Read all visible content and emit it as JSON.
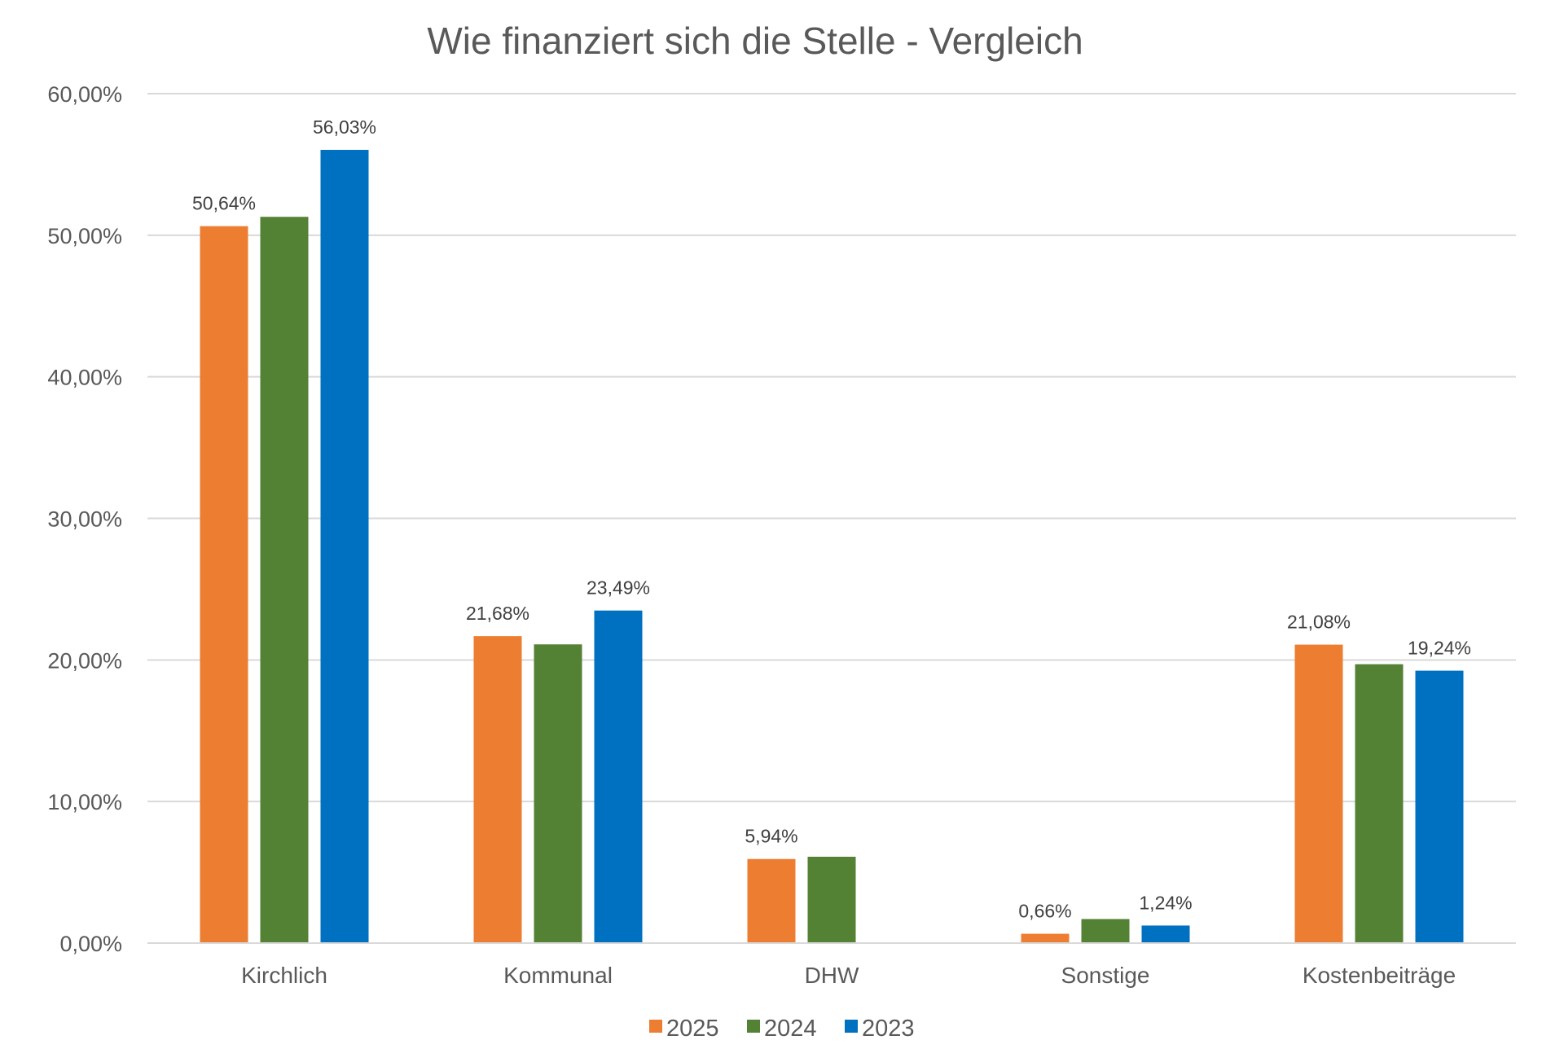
{
  "chart_data": {
    "type": "bar",
    "title": "Wie finanziert sich die Stelle - Vergleich",
    "xlabel": "",
    "ylabel": "",
    "categories": [
      "Kirchlich",
      "Kommunal",
      "DHW",
      "Sonstige",
      "Kostenbeiträge"
    ],
    "series": [
      {
        "name": "2025",
        "color": "#ED7D31",
        "values": [
          50.64,
          21.68,
          5.94,
          0.66,
          21.08
        ],
        "labels": [
          "50,64%",
          "21,68%",
          "5,94%",
          "0,66%",
          "21,08%"
        ]
      },
      {
        "name": "2024",
        "color": "#548235",
        "values": [
          51.3,
          21.1,
          6.1,
          1.7,
          19.7
        ],
        "labels": [
          "",
          "",
          "",
          "",
          ""
        ]
      },
      {
        "name": "2023",
        "color": "#0070C0",
        "values": [
          56.03,
          23.49,
          null,
          1.24,
          19.24
        ],
        "labels": [
          "56,03%",
          "23,49%",
          "",
          "1,24%",
          "19,24%"
        ]
      }
    ],
    "ylim": [
      0,
      60
    ],
    "yticks": [
      0,
      10,
      20,
      30,
      40,
      50,
      60
    ],
    "ytick_labels": [
      "0,00%",
      "10,00%",
      "20,00%",
      "30,00%",
      "40,00%",
      "50,00%",
      "60,00%"
    ],
    "grid": true,
    "legend_position": "bottom"
  }
}
